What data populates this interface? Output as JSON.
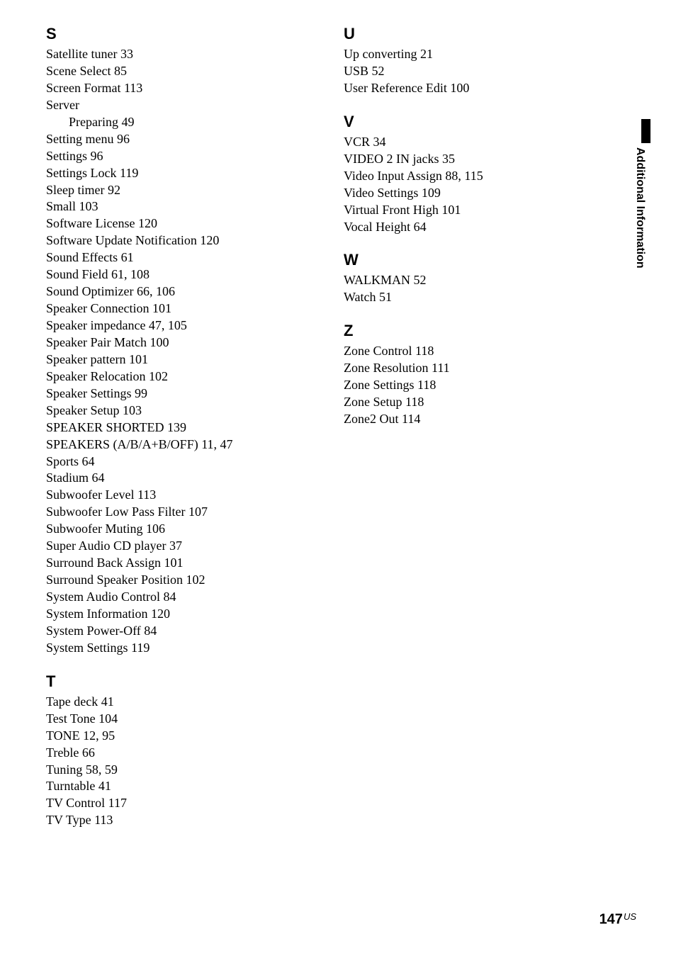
{
  "side_tab": "Additional Information",
  "page_number": "147",
  "page_suffix": "US",
  "colors": {
    "text": "#000000",
    "background": "#ffffff",
    "tab_block": "#000000"
  },
  "typography": {
    "body_font": "Times New Roman",
    "heading_font": "Arial",
    "body_size_pt": 14,
    "heading_size_pt": 17,
    "heading_weight": 700
  },
  "left": [
    {
      "head": "S"
    },
    {
      "term": "Satellite tuner",
      "pages": "33"
    },
    {
      "term": "Scene Select",
      "pages": "85"
    },
    {
      "term": "Screen Format",
      "pages": "113"
    },
    {
      "term": "Server",
      "pages": ""
    },
    {
      "term": "Preparing",
      "pages": "49",
      "indent": true
    },
    {
      "term": "Setting menu",
      "pages": "96"
    },
    {
      "term": "Settings",
      "pages": "96"
    },
    {
      "term": "Settings Lock",
      "pages": "119"
    },
    {
      "term": "Sleep timer",
      "pages": "92"
    },
    {
      "term": "Small",
      "pages": "103"
    },
    {
      "term": "Software License",
      "pages": "120"
    },
    {
      "term": "Software Update Notification",
      "pages": "120"
    },
    {
      "term": "Sound Effects",
      "pages": "61"
    },
    {
      "term": "Sound Field",
      "pages": "61, 108"
    },
    {
      "term": "Sound Optimizer",
      "pages": "66, 106"
    },
    {
      "term": "Speaker Connection",
      "pages": "101"
    },
    {
      "term": "Speaker impedance",
      "pages": "47, 105"
    },
    {
      "term": "Speaker Pair Match",
      "pages": "100"
    },
    {
      "term": "Speaker pattern",
      "pages": "101"
    },
    {
      "term": "Speaker Relocation",
      "pages": "102"
    },
    {
      "term": "Speaker Settings",
      "pages": "99"
    },
    {
      "term": "Speaker Setup",
      "pages": "103"
    },
    {
      "term": "SPEAKER SHORTED",
      "pages": "139"
    },
    {
      "term": "SPEAKERS (A/B/A+B/OFF)",
      "pages": "11, 47"
    },
    {
      "term": "Sports",
      "pages": "64"
    },
    {
      "term": "Stadium",
      "pages": "64"
    },
    {
      "term": "Subwoofer Level",
      "pages": "113"
    },
    {
      "term": "Subwoofer Low Pass Filter",
      "pages": "107"
    },
    {
      "term": "Subwoofer Muting",
      "pages": "106"
    },
    {
      "term": "Super Audio CD player",
      "pages": "37"
    },
    {
      "term": "Surround Back Assign",
      "pages": "101"
    },
    {
      "term": "Surround Speaker Position",
      "pages": "102"
    },
    {
      "term": "System Audio Control",
      "pages": "84"
    },
    {
      "term": "System Information",
      "pages": "120"
    },
    {
      "term": "System Power-Off",
      "pages": "84"
    },
    {
      "term": "System Settings",
      "pages": "119"
    },
    {
      "head": "T"
    },
    {
      "term": "Tape deck",
      "pages": "41"
    },
    {
      "term": "Test Tone",
      "pages": "104"
    },
    {
      "term": "TONE",
      "pages": "12, 95"
    },
    {
      "term": "Treble",
      "pages": "66"
    },
    {
      "term": "Tuning",
      "pages": "58, 59"
    },
    {
      "term": "Turntable",
      "pages": "41"
    },
    {
      "term": "TV Control",
      "pages": "117"
    },
    {
      "term": "TV Type",
      "pages": "113"
    }
  ],
  "right": [
    {
      "head": "U"
    },
    {
      "term": "Up converting",
      "pages": "21"
    },
    {
      "term": "USB",
      "pages": "52"
    },
    {
      "term": "User Reference Edit",
      "pages": "100"
    },
    {
      "head": "V"
    },
    {
      "term": "VCR",
      "pages": "34"
    },
    {
      "term": "VIDEO 2 IN jacks",
      "pages": "35"
    },
    {
      "term": "Video Input Assign",
      "pages": "88, 115"
    },
    {
      "term": "Video Settings",
      "pages": "109"
    },
    {
      "term": "Virtual Front High",
      "pages": "101"
    },
    {
      "term": "Vocal Height",
      "pages": "64"
    },
    {
      "head": "W"
    },
    {
      "term": "WALKMAN",
      "pages": "52"
    },
    {
      "term": "Watch",
      "pages": "51"
    },
    {
      "head": "Z"
    },
    {
      "term": "Zone Control",
      "pages": "118"
    },
    {
      "term": "Zone Resolution",
      "pages": "111"
    },
    {
      "term": "Zone Settings",
      "pages": "118"
    },
    {
      "term": "Zone Setup",
      "pages": "118"
    },
    {
      "term": "Zone2 Out",
      "pages": "114"
    }
  ]
}
